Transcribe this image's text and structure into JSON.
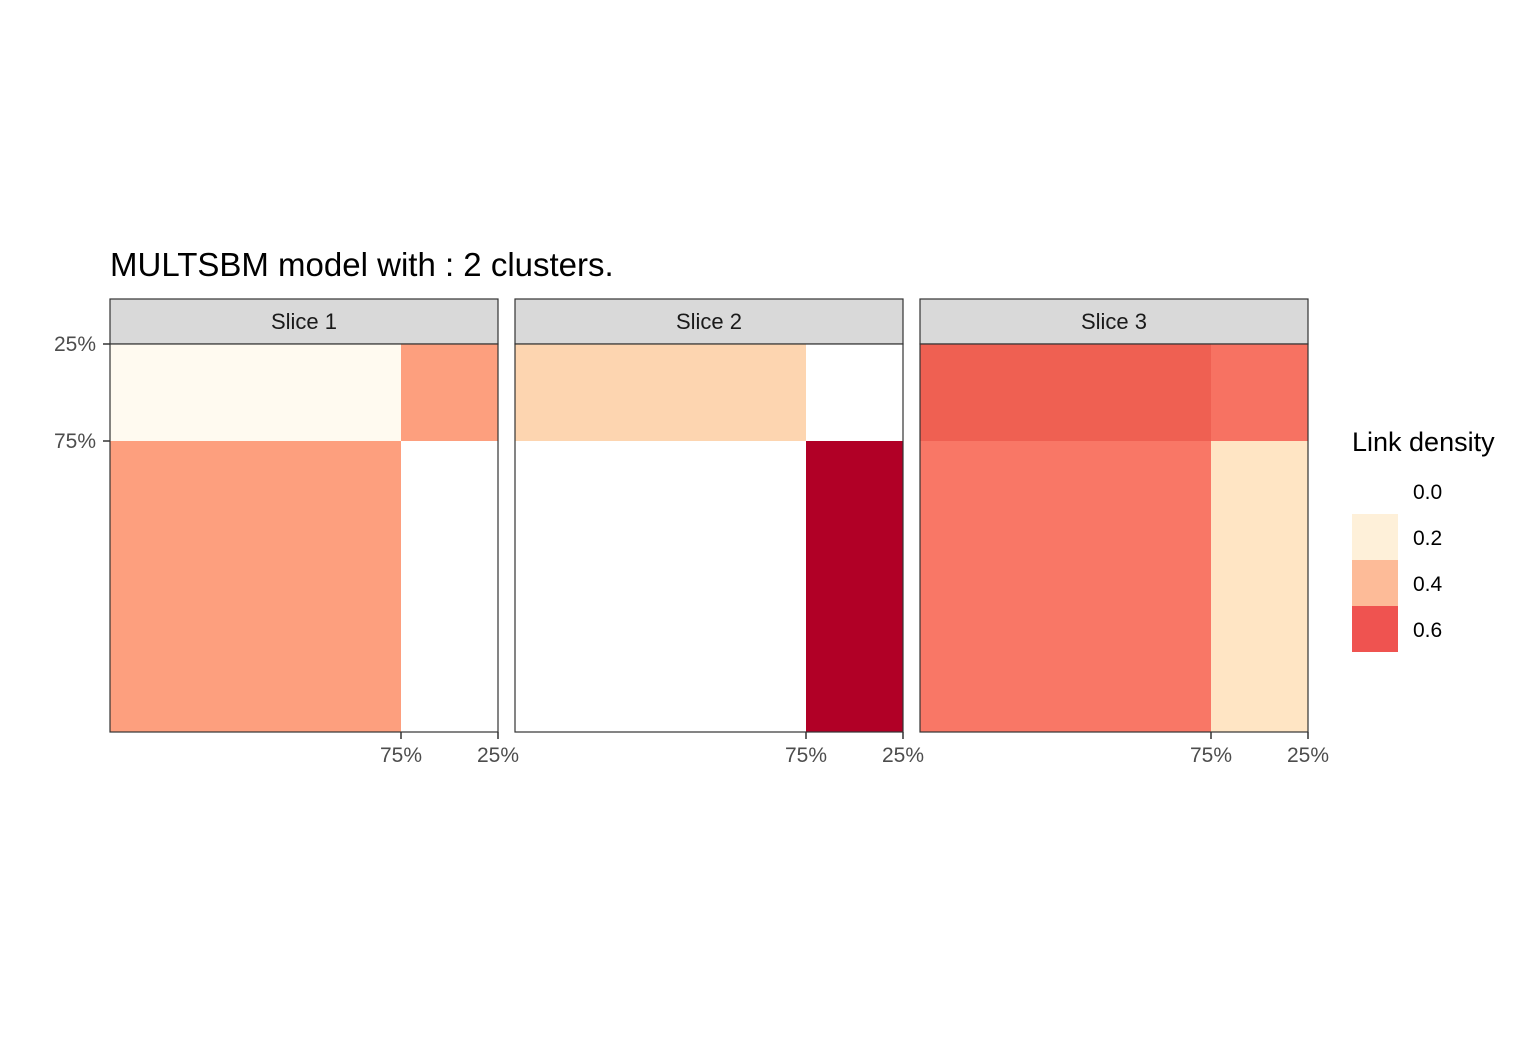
{
  "chart_data": {
    "type": "heatmap",
    "title": "MULTSBM model with : 2 clusters.",
    "xlabel": "",
    "ylabel": "",
    "cluster_proportions": [
      0.75,
      0.25
    ],
    "x_tick_labels": [
      "75%",
      "25%"
    ],
    "y_tick_labels": [
      "25%",
      "75%"
    ],
    "facets": [
      {
        "label": "Slice  1",
        "matrix": [
          [
            0.42,
            0.0
          ],
          [
            0.05,
            0.42
          ]
        ]
      },
      {
        "label": "Slice  2",
        "matrix": [
          [
            0.0,
            0.75
          ],
          [
            0.28,
            0.0
          ]
        ]
      },
      {
        "label": "Slice  3",
        "matrix": [
          [
            0.53,
            0.22
          ],
          [
            0.62,
            0.55
          ]
        ]
      }
    ],
    "legend": {
      "title": "Link density",
      "placement": "right",
      "entries": [
        {
          "label": "0.0",
          "color": "#ffffff"
        },
        {
          "label": "0.2",
          "color": "#fef0d9"
        },
        {
          "label": "0.4",
          "color": "#fdbb98"
        },
        {
          "label": "0.6",
          "color": "#ef5350"
        }
      ]
    },
    "color_scale": {
      "stops": [
        0.0,
        0.05,
        0.22,
        0.28,
        0.42,
        0.53,
        0.62,
        0.75
      ],
      "colors": [
        "#ffffff",
        "#fffaf0",
        "#ffe5c4",
        "#fdd5b0",
        "#fd9f7e",
        "#f97766",
        "#ef6052",
        "#b10026"
      ]
    },
    "grid": false
  }
}
